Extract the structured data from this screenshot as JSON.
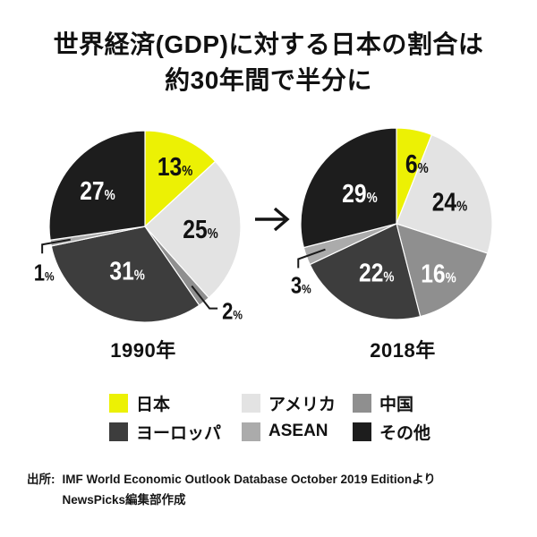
{
  "title": {
    "line1": "世界経済(GDP)に対する日本の割合は",
    "line2": "約30年間で半分に"
  },
  "colors": {
    "japan": "#ecf104",
    "america": "#e3e3e3",
    "china": "#8f8f8f",
    "europe": "#3d3d3d",
    "asean": "#ababab",
    "others": "#1d1d1d"
  },
  "chart_data": [
    {
      "type": "pie",
      "title": "1990年",
      "unit": "%",
      "start": "top",
      "direction": "clockwise",
      "slices": [
        {
          "label": "日本",
          "value": 13,
          "color": "japan",
          "text": "#111",
          "placement": "inside",
          "lr": 0.7,
          "shift": 3
        },
        {
          "label": "アメリカ",
          "value": 25,
          "color": "america",
          "text": "#111",
          "placement": "inside",
          "lr": 0.58,
          "shift": 0
        },
        {
          "label": "中国",
          "value": 2,
          "color": "china",
          "text": "#111",
          "placement": "callout",
          "elbow": [
            9,
            0
          ],
          "labelAt": [
            5,
            12
          ],
          "anchor": "start"
        },
        {
          "label": "ヨーロッパ",
          "value": 31,
          "color": "europe",
          "text": "#fff",
          "placement": "inside",
          "lr": 0.5,
          "shift": 0
        },
        {
          "label": "ASEAN",
          "value": 1,
          "color": "asean",
          "text": "#111",
          "placement": "callout",
          "elbow": [
            0,
            10
          ],
          "labelAt": [
            2,
            30
          ],
          "anchor": "middle"
        },
        {
          "label": "その他",
          "value": 27,
          "color": "others",
          "text": "#fff",
          "placement": "inside",
          "lr": 0.62,
          "shift": -4
        }
      ]
    },
    {
      "type": "pie",
      "title": "2018年",
      "unit": "%",
      "start": "top",
      "direction": "clockwise",
      "slices": [
        {
          "label": "日本",
          "value": 6,
          "color": "japan",
          "text": "#111",
          "placement": "inside",
          "lr": 0.66,
          "shift": 8
        },
        {
          "label": "アメリカ",
          "value": 24,
          "color": "america",
          "text": "#111",
          "placement": "inside",
          "lr": 0.6,
          "shift": 3
        },
        {
          "label": "中国",
          "value": 16,
          "color": "china",
          "text": "#fff",
          "placement": "inside",
          "lr": 0.68,
          "shift": 3
        },
        {
          "label": "ヨーロッパ",
          "value": 22,
          "color": "europe",
          "text": "#fff",
          "placement": "inside",
          "lr": 0.55,
          "shift": -3
        },
        {
          "label": "ASEAN",
          "value": 3,
          "color": "asean",
          "text": "#111",
          "placement": "callout",
          "elbow": [
            0,
            10
          ],
          "labelAt": [
            3,
            28
          ],
          "anchor": "middle"
        },
        {
          "label": "その他",
          "value": 29,
          "color": "others",
          "text": "#fff",
          "placement": "inside",
          "lr": 0.5,
          "shift": 2
        }
      ]
    }
  ],
  "legend": {
    "position": "bottom",
    "items": [
      {
        "label": "日本",
        "color": "japan"
      },
      {
        "label": "アメリカ",
        "color": "america"
      },
      {
        "label": "中国",
        "color": "china"
      },
      {
        "label": "ヨーロッパ",
        "color": "europe"
      },
      {
        "label": "ASEAN",
        "color": "asean"
      },
      {
        "label": "その他",
        "color": "others"
      }
    ]
  },
  "source": {
    "prefix": "出所:",
    "line1": "IMF World Economic Outlook Database October 2019 Editionより",
    "line2": "NewsPicks編集部作成"
  }
}
